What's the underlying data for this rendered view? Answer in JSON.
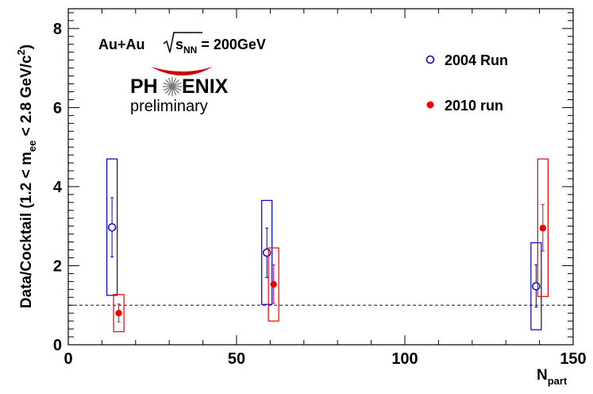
{
  "chart_data": {
    "type": "scatter",
    "xlabel": "N",
    "xlabel_sub": "part",
    "ylabel": "Data/Cocktail (1.2 < m",
    "ylabel_sub": "ee",
    "ylabel_tail": " < 2.8 GeV/c",
    "ylabel_sup": "2",
    "ylabel_close": ")",
    "xlim": [
      0,
      150
    ],
    "ylim": [
      0,
      8.5
    ],
    "x_ticks": [
      "0",
      "50",
      "100",
      "150"
    ],
    "y_ticks": [
      "0",
      "2",
      "4",
      "6",
      "8"
    ],
    "reference_line": 1,
    "legend_position": "top-right",
    "annotation": {
      "system": "Au+Au",
      "energy_sym": "s",
      "energy_sub": "NN",
      "energy_value": " = 200GeV"
    },
    "logo": {
      "left": "PH",
      "right": "ENIX",
      "subtitle": "preliminary"
    },
    "series": [
      {
        "name": "2004 Run",
        "color": "#0000cc",
        "marker": "open-circle",
        "points": [
          {
            "x": 13,
            "y": 2.97,
            "stat_lo": 2.22,
            "stat_hi": 3.72,
            "sys_lo": 1.25,
            "sys_hi": 4.7
          },
          {
            "x": 59,
            "y": 2.33,
            "stat_lo": 1.7,
            "stat_hi": 2.95,
            "sys_lo": 1.02,
            "sys_hi": 3.65
          },
          {
            "x": 139,
            "y": 1.48,
            "stat_lo": 0.95,
            "stat_hi": 2.02,
            "sys_lo": 0.38,
            "sys_hi": 2.58
          }
        ]
      },
      {
        "name": "2010 run",
        "color": "#ee0000",
        "marker": "filled-circle",
        "points": [
          {
            "x": 15,
            "y": 0.8,
            "stat_lo": 0.58,
            "stat_hi": 1.03,
            "sys_lo": 0.33,
            "sys_hi": 1.27
          },
          {
            "x": 61,
            "y": 1.53,
            "stat_lo": 1.05,
            "stat_hi": 2.02,
            "sys_lo": 0.6,
            "sys_hi": 2.45
          },
          {
            "x": 141,
            "y": 2.95,
            "stat_lo": 2.37,
            "stat_hi": 3.55,
            "sys_lo": 1.22,
            "sys_hi": 4.7
          }
        ]
      }
    ]
  }
}
